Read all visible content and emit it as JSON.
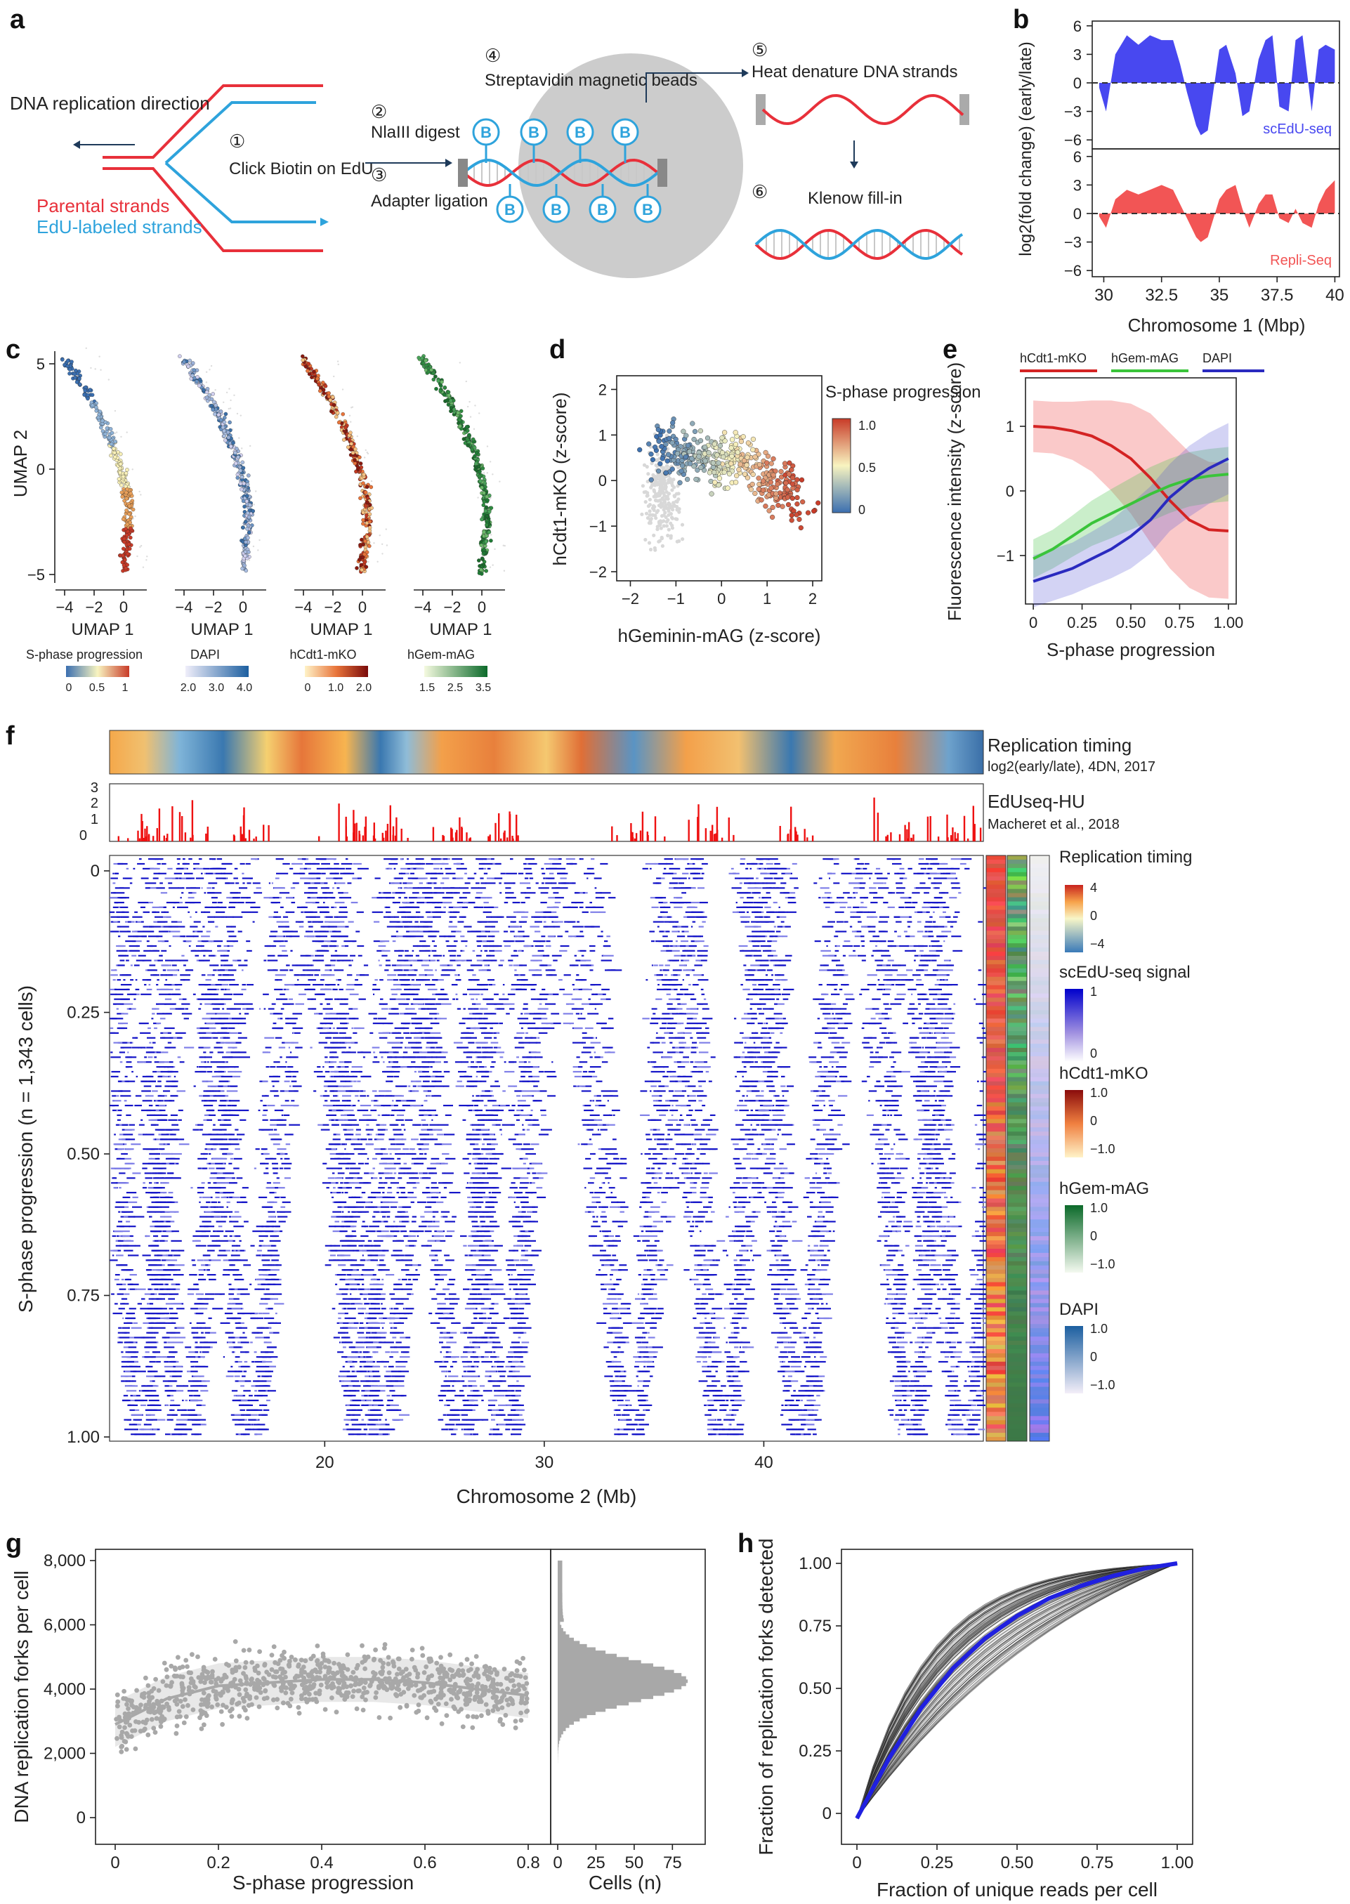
{
  "panel_labels": {
    "a": "a",
    "b": "b",
    "c": "c",
    "d": "d",
    "e": "e",
    "f": "f",
    "g": "g",
    "h": "h"
  },
  "panel_a": {
    "direction_label": "DNA replication direction",
    "parental": "Parental strands",
    "edu": "EdU-labeled strands",
    "step1_num": "①",
    "step1": "Click Biotin on EdU",
    "step2_num": "②",
    "step2": "NlaIII digest",
    "step3_num": "③",
    "step3": "Adapter ligation",
    "step4_num": "④",
    "step4": "Streptavidin magnetic beads",
    "step5_num": "⑤",
    "step5": "Heat denature DNA strands",
    "step6_num": "⑥",
    "step6": "Klenow fill-in",
    "bead_letter": "B",
    "colors": {
      "parental": "#e8303a",
      "edu": "#2ea3dc",
      "bead": "#cccccc"
    }
  },
  "chart_data": [
    {
      "id": "b",
      "type": "area",
      "series": [
        {
          "name": "scEdU-seq",
          "color": "#4848f0"
        },
        {
          "name": "Repli-Seq",
          "color": "#f25555"
        }
      ],
      "xlabel": "Chromosome 1 (Mbp)",
      "ylabel": "log2(fold change) (early/late)",
      "xticks": [
        "30",
        "32.5",
        "35",
        "37.5",
        "40"
      ],
      "yticks": [
        "6",
        "3",
        "0",
        "−3",
        "−6"
      ],
      "xlim": [
        29.5,
        40.2
      ],
      "ylim": [
        -6.5,
        6.5
      ],
      "x": [
        29.8,
        30.1,
        30.5,
        31.0,
        31.5,
        32.0,
        32.5,
        33.0,
        33.3,
        33.6,
        34.0,
        34.2,
        34.5,
        35.0,
        35.3,
        35.7,
        36.0,
        36.3,
        36.7,
        37.0,
        37.3,
        37.6,
        38.0,
        38.3,
        38.6,
        39.0,
        39.3,
        39.6,
        40.0
      ],
      "values_edu": [
        -0.5,
        -3.0,
        3.0,
        5.0,
        4.0,
        5.0,
        4.5,
        4.5,
        2.0,
        -1.0,
        -4.5,
        -5.5,
        -5.0,
        3.5,
        4.0,
        1.0,
        -3.5,
        -3.0,
        2.5,
        4.5,
        5.0,
        -2.5,
        -3.0,
        4.5,
        5.0,
        -3.0,
        3.5,
        4.0,
        3.5
      ],
      "values_repli": [
        -0.3,
        -1.5,
        1.5,
        2.5,
        2.0,
        2.5,
        3.0,
        2.5,
        1.0,
        -0.5,
        -2.5,
        -3.0,
        -2.5,
        1.5,
        2.5,
        3.0,
        0.5,
        -1.5,
        1.0,
        2.0,
        2.0,
        -0.5,
        -1.0,
        0.5,
        -1.0,
        -1.5,
        1.0,
        2.5,
        3.5
      ]
    },
    {
      "id": "c",
      "type": "scatter",
      "xlabel": "UMAP 1",
      "ylabel": "UMAP 2",
      "xticks": [
        "−4",
        "−2",
        "0"
      ],
      "yticks": [
        "5",
        "0",
        "−5"
      ],
      "subplots": [
        {
          "name": "S-phase progression",
          "ticks": [
            "0",
            "0.5",
            "1"
          ]
        },
        {
          "name": "DAPI",
          "ticks": [
            "2.0",
            "3.0",
            "4.0"
          ]
        },
        {
          "name": "hCdt1-mKO",
          "ticks": [
            "0",
            "1.0",
            "2.0"
          ]
        },
        {
          "name": "hGem-mAG",
          "ticks": [
            "1.5",
            "2.5",
            "3.5"
          ]
        }
      ]
    },
    {
      "id": "d",
      "type": "scatter",
      "xlabel": "hGeminin-mAG (z-score)",
      "ylabel": "hCdt1-mKO (z-score)",
      "xticks": [
        "−2",
        "−1",
        "0",
        "1",
        "2"
      ],
      "yticks": [
        "2",
        "1",
        "0",
        "−1",
        "−2"
      ],
      "xlim": [
        -2.3,
        2.2
      ],
      "ylim": [
        -2.2,
        2.3
      ],
      "color_label": "S-phase progression",
      "color_ticks": [
        "1.0",
        "0.5",
        "0"
      ]
    },
    {
      "id": "e",
      "type": "line",
      "xlabel": "S-phase progression",
      "ylabel": "Fluorescence intensity (z-score)",
      "xticks": [
        "0",
        "0.25",
        "0.50",
        "0.75",
        "1.00"
      ],
      "yticks": [
        "1",
        "0",
        "−1"
      ],
      "xlim": [
        -0.04,
        1.04
      ],
      "ylim": [
        -1.75,
        1.75
      ],
      "x": [
        0,
        0.1,
        0.2,
        0.3,
        0.4,
        0.5,
        0.6,
        0.7,
        0.8,
        0.9,
        1.0
      ],
      "series": [
        {
          "name": "hCdt1-mKO",
          "color": "#d42323",
          "values": [
            1.0,
            0.98,
            0.93,
            0.85,
            0.7,
            0.5,
            0.2,
            -0.15,
            -0.45,
            -0.6,
            -0.62
          ]
        },
        {
          "name": "hGem-mAG",
          "color": "#3ac43a",
          "values": [
            -1.05,
            -0.9,
            -0.7,
            -0.5,
            -0.35,
            -0.2,
            -0.05,
            0.08,
            0.18,
            0.23,
            0.26
          ]
        },
        {
          "name": "DAPI",
          "color": "#2a2abf",
          "values": [
            -1.4,
            -1.3,
            -1.2,
            -1.05,
            -0.9,
            -0.7,
            -0.45,
            -0.1,
            0.15,
            0.35,
            0.5
          ]
        }
      ]
    },
    {
      "id": "f",
      "type": "heatmap",
      "xlabel": "Chromosome 2 (Mb)",
      "ylabel": "S-phase progression (n = 1,343 cells)",
      "xticks": [
        "20",
        "30",
        "40"
      ],
      "yticks": [
        "0",
        "0.25",
        "0.50",
        "0.75",
        "1.00"
      ],
      "track1_title": "Replication timing",
      "track1_sub": "log2(early/late), 4DN, 2017",
      "track2_title": "EdUseq-HU",
      "track2_sub": "Macheret et al., 2018",
      "track2_yticks": [
        "3",
        "2",
        "1",
        "0"
      ],
      "legends": [
        {
          "title": "Replication timing",
          "ticks": [
            "4",
            "0",
            "−4"
          ]
        },
        {
          "title": "scEdU-seq signal",
          "ticks": [
            "1",
            "0"
          ]
        },
        {
          "title": "hCdt1-mKO",
          "ticks": [
            "1.0",
            "0",
            "−1.0"
          ]
        },
        {
          "title": "hGem-mAG",
          "ticks": [
            "1.0",
            "0",
            "−1.0"
          ]
        },
        {
          "title": "DAPI",
          "ticks": [
            "1.0",
            "0",
            "−1.0"
          ]
        }
      ],
      "origin_positions_mb": [
        11.5,
        13.5,
        16.5,
        21.5,
        22.5,
        26.0,
        28.0,
        33.8,
        38.0,
        41.5,
        46.5,
        49.0
      ]
    },
    {
      "id": "g",
      "type": "scatter",
      "xlabel": "S-phase progression",
      "ylabel": "DNA replication forks per cell",
      "xticks": [
        "0",
        "0.2",
        "0.4",
        "0.6",
        "0.8"
      ],
      "yticks": [
        "8,000",
        "6,000",
        "4,000",
        "2,000",
        "0"
      ],
      "hist_xlabel": "Cells (n)",
      "hist_xticks": [
        "0",
        "25",
        "50",
        "75"
      ],
      "trend_x": [
        0,
        0.05,
        0.1,
        0.2,
        0.3,
        0.4,
        0.5,
        0.6,
        0.7,
        0.8
      ],
      "trend_y": [
        2900,
        3300,
        3700,
        4100,
        4200,
        4300,
        4300,
        4200,
        4000,
        3800
      ]
    },
    {
      "id": "h",
      "type": "line",
      "xlabel": "Fraction of unique reads per cell",
      "ylabel": "Fraction of replication forks detected",
      "xticks": [
        "0",
        "0.25",
        "0.50",
        "0.75",
        "1.00"
      ],
      "yticks": [
        "1.00",
        "0.75",
        "0.50",
        "0.25",
        "0"
      ],
      "mean_x": [
        0,
        0.05,
        0.1,
        0.2,
        0.3,
        0.4,
        0.5,
        0.6,
        0.7,
        0.8,
        0.9,
        1.0
      ],
      "mean_y": [
        -0.02,
        0.1,
        0.22,
        0.42,
        0.58,
        0.7,
        0.79,
        0.86,
        0.91,
        0.95,
        0.98,
        1.0
      ],
      "mean_color": "#2020e0"
    }
  ]
}
